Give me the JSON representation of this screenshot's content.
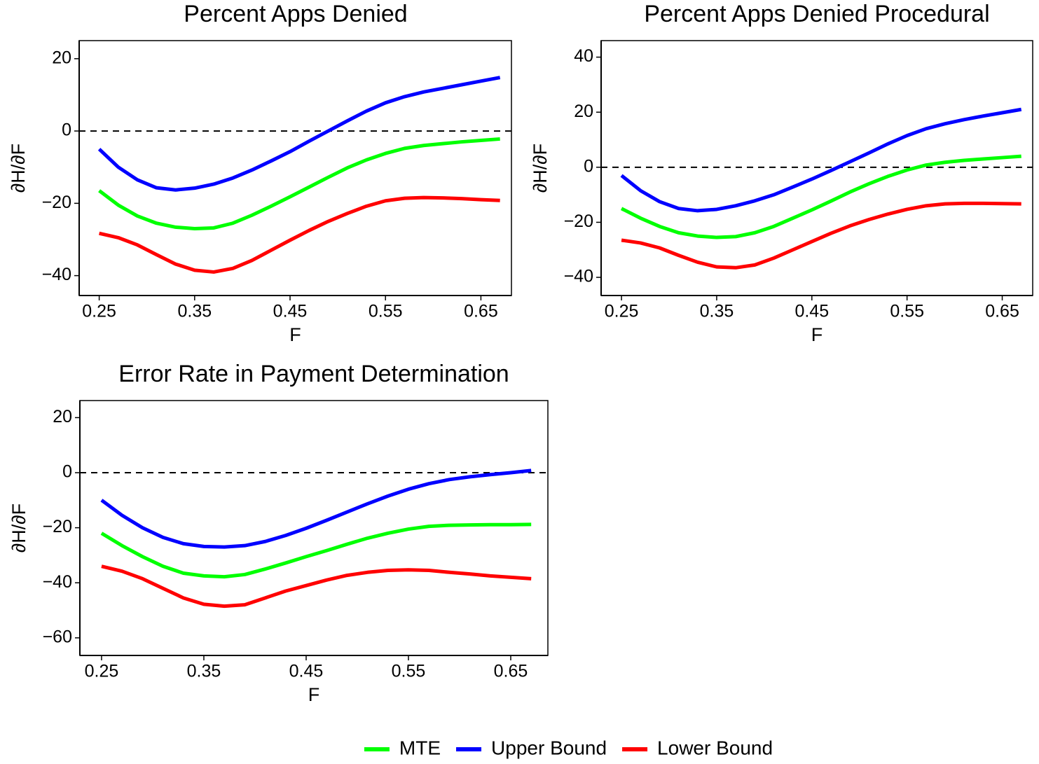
{
  "chart_data": [
    {
      "type": "line",
      "title": "Percent Apps Denied",
      "xlabel": "F",
      "ylabel": "∂H/∂F",
      "x": [
        0.25,
        0.27,
        0.29,
        0.31,
        0.33,
        0.35,
        0.37,
        0.39,
        0.41,
        0.43,
        0.45,
        0.47,
        0.49,
        0.51,
        0.53,
        0.55,
        0.57,
        0.59,
        0.61,
        0.63,
        0.65,
        0.67
      ],
      "series": [
        {
          "name": "MTE",
          "color": "#00ff00",
          "values": [
            -16.5,
            -20.5,
            -23.5,
            -25.5,
            -26.6,
            -27,
            -26.8,
            -25.5,
            -23.3,
            -20.8,
            -18.2,
            -15.5,
            -12.8,
            -10.2,
            -8,
            -6.2,
            -4.8,
            -4,
            -3.5,
            -3,
            -2.6,
            -2.2
          ]
        },
        {
          "name": "Upper Bound",
          "color": "#0000ff",
          "values": [
            -5,
            -10,
            -13.5,
            -15.7,
            -16.3,
            -15.8,
            -14.7,
            -13,
            -10.8,
            -8.3,
            -5.7,
            -2.8,
            0,
            2.8,
            5.5,
            7.8,
            9.5,
            10.8,
            11.8,
            12.8,
            13.8,
            14.8
          ]
        },
        {
          "name": "Lower Bound",
          "color": "#ff0000",
          "values": [
            -28.3,
            -29.5,
            -31.5,
            -34.2,
            -36.8,
            -38.5,
            -39,
            -38,
            -35.8,
            -33,
            -30.2,
            -27.5,
            -25,
            -22.8,
            -20.8,
            -19.3,
            -18.6,
            -18.4,
            -18.5,
            -18.7,
            -19,
            -19.2
          ]
        }
      ],
      "xlim": [
        0.229,
        0.682
      ],
      "xticks": [
        0.25,
        0.35,
        0.45,
        0.55,
        0.65
      ],
      "ylim": [
        -45.5,
        25
      ],
      "yticks": [
        {
          "value": -40,
          "label": "−40"
        },
        {
          "value": -20,
          "label": "−20"
        },
        0,
        20
      ],
      "hline": 0,
      "legend": "bottom"
    },
    {
      "type": "line",
      "title": "Percent Apps Denied Procedural",
      "xlabel": "F",
      "ylabel": "∂H/∂F",
      "x": [
        0.25,
        0.27,
        0.29,
        0.31,
        0.33,
        0.35,
        0.37,
        0.39,
        0.41,
        0.43,
        0.45,
        0.47,
        0.49,
        0.51,
        0.53,
        0.55,
        0.57,
        0.59,
        0.61,
        0.63,
        0.65,
        0.67
      ],
      "series": [
        {
          "color": "#00ff00",
          "values": [
            -15,
            -18.5,
            -21.5,
            -23.8,
            -25,
            -25.5,
            -25.2,
            -23.8,
            -21.5,
            -18.5,
            -15.5,
            -12.3,
            -9,
            -6,
            -3.3,
            -1,
            0.8,
            1.8,
            2.5,
            3,
            3.5,
            4
          ]
        },
        {
          "color": "#0000ff",
          "values": [
            -3,
            -8.5,
            -12.5,
            -15,
            -15.8,
            -15.3,
            -14,
            -12.2,
            -10,
            -7.2,
            -4.3,
            -1.2,
            2,
            5.2,
            8.5,
            11.5,
            14,
            15.8,
            17.3,
            18.6,
            19.8,
            21
          ]
        },
        {
          "color": "#ff0000",
          "values": [
            -26.5,
            -27.5,
            -29.3,
            -32,
            -34.5,
            -36.2,
            -36.5,
            -35.5,
            -33,
            -30,
            -27,
            -24,
            -21.3,
            -19,
            -17,
            -15.3,
            -14,
            -13.3,
            -13.1,
            -13.1,
            -13.2,
            -13.3
          ]
        }
      ],
      "xlim": [
        0.2286,
        0.682
      ],
      "xticks": [
        0.25,
        0.35,
        0.45,
        0.55,
        0.65
      ],
      "ylim": [
        -46.6,
        46
      ],
      "yticks": [
        {
          "value": -40,
          "label": "−40"
        },
        {
          "value": -20,
          "label": "−20"
        },
        0,
        20,
        40
      ],
      "hline": 0
    },
    {
      "type": "line",
      "title": "Error Rate in Payment Determination",
      "xlabel": "F",
      "ylabel": "∂H/∂F",
      "x": [
        0.25,
        0.27,
        0.29,
        0.31,
        0.33,
        0.35,
        0.37,
        0.39,
        0.41,
        0.43,
        0.45,
        0.47,
        0.49,
        0.51,
        0.53,
        0.55,
        0.57,
        0.59,
        0.61,
        0.63,
        0.65,
        0.67
      ],
      "series": [
        {
          "color": "#00ff00",
          "values": [
            -22,
            -26.5,
            -30.5,
            -34,
            -36.5,
            -37.5,
            -37.8,
            -37,
            -35,
            -32.8,
            -30.5,
            -28.3,
            -26,
            -23.8,
            -22,
            -20.5,
            -19.5,
            -19.1,
            -19,
            -18.9,
            -18.9,
            -18.8
          ]
        },
        {
          "color": "#0000ff",
          "values": [
            -10,
            -15.5,
            -20,
            -23.5,
            -25.8,
            -26.8,
            -27,
            -26.5,
            -25,
            -22.8,
            -20.2,
            -17.3,
            -14.3,
            -11.3,
            -8.5,
            -6,
            -4,
            -2.5,
            -1.5,
            -0.7,
            0,
            0.8
          ]
        },
        {
          "color": "#ff0000",
          "values": [
            -34,
            -35.8,
            -38.5,
            -42,
            -45.5,
            -47.8,
            -48.5,
            -48,
            -45.5,
            -43,
            -41,
            -39,
            -37.3,
            -36.2,
            -35.5,
            -35.3,
            -35.5,
            -36.2,
            -36.8,
            -37.5,
            -38,
            -38.5
          ]
        }
      ],
      "xlim": [
        0.2288,
        0.6863
      ],
      "xticks": [
        0.25,
        0.35,
        0.45,
        0.55,
        0.65
      ],
      "ylim": [
        -66.4,
        26.2
      ],
      "yticks": [
        {
          "value": -60,
          "label": "−60"
        },
        {
          "value": -40,
          "label": "−40"
        },
        {
          "value": -20,
          "label": "−20"
        },
        0,
        20
      ],
      "hline": 0
    }
  ]
}
